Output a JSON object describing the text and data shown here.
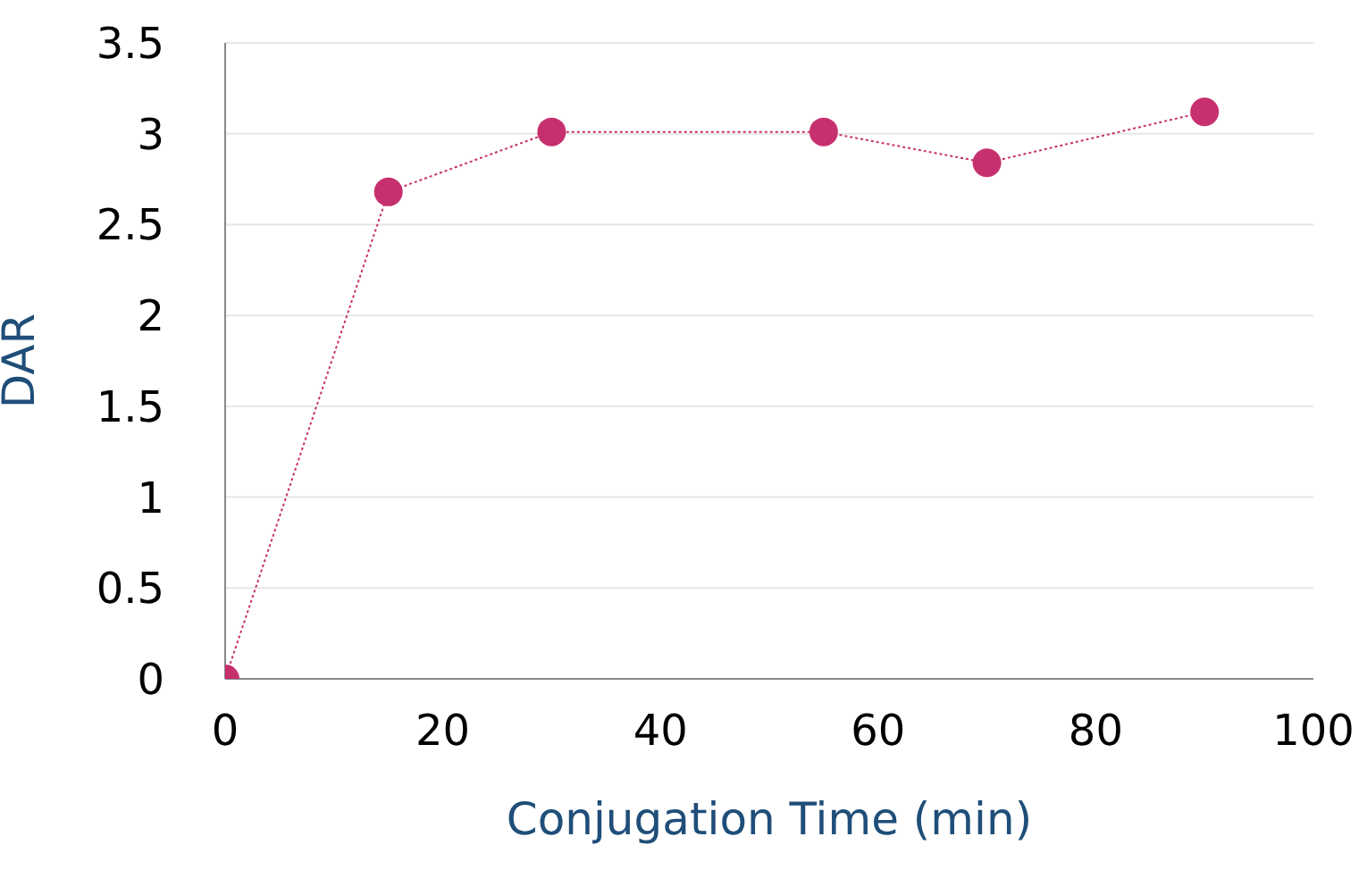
{
  "chart_data": {
    "type": "line",
    "xlabel": "Conjugation Time (min)",
    "ylabel": "DAR",
    "x": [
      0,
      15,
      30,
      55,
      70,
      90
    ],
    "series": [
      {
        "color": "#c7306e",
        "values": [
          0,
          2.68,
          3.01,
          3.01,
          2.84,
          3.12
        ]
      }
    ],
    "xlim": [
      0,
      100
    ],
    "xticks": [
      0,
      20,
      40,
      60,
      80,
      100
    ],
    "ylim": [
      0,
      3.5
    ],
    "yticks": [
      0,
      0.5,
      1,
      1.5,
      2,
      2.5,
      3,
      3.5
    ],
    "grid": "y",
    "marker": "circle",
    "line_style": "dotted",
    "legend": false
  }
}
